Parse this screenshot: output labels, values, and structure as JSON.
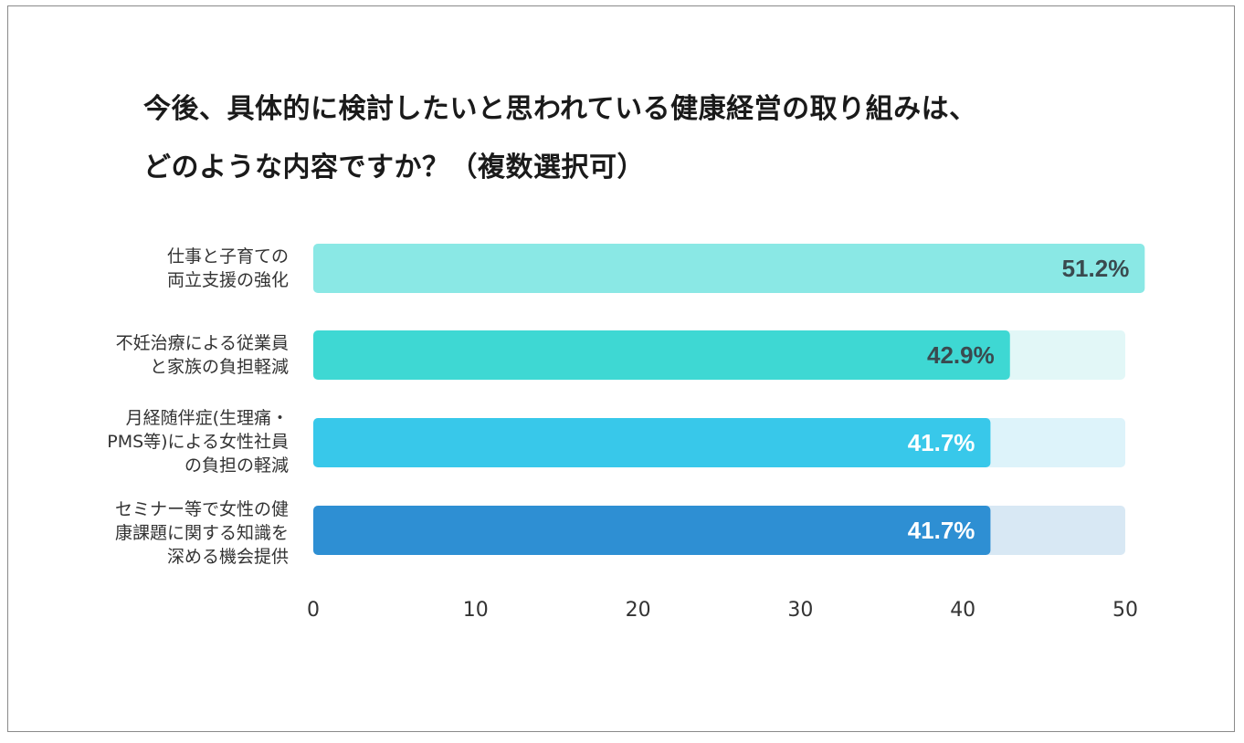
{
  "chart_data": {
    "type": "bar",
    "orientation": "horizontal",
    "title_lines": [
      "今後、具体的に検討したいと思われている健康経営の取り組みは、",
      "どのような内容ですか？（複数選択可）"
    ],
    "categories": [
      [
        "仕事と子育ての",
        "両立支援の強化"
      ],
      [
        "不妊治療による従業員",
        "と家族の負担軽減"
      ],
      [
        "月経随伴症(生理痛・",
        "PMS等)による女性社員",
        "の負担の軽減"
      ],
      [
        "セミナー等で女性の健",
        "康課題に関する知識を",
        "深める機会提供"
      ]
    ],
    "values": [
      51.2,
      42.9,
      41.7,
      41.7
    ],
    "value_labels": [
      "51.2%",
      "42.9%",
      "41.7%",
      "41.7%"
    ],
    "xlim": [
      0,
      50
    ],
    "ticks": [
      "0",
      "10",
      "20",
      "30",
      "40",
      "50"
    ],
    "colors": [
      "#8ae8e5",
      "#3ed8d3",
      "#38c8ea",
      "#2e8fd3"
    ],
    "track_colors": [
      "#e3f8f8",
      "#e2f7f7",
      "#ddf3fa",
      "#d8e8f4"
    ],
    "label_colors": [
      "#3a4a4f",
      "#3a4a4f",
      "#ffffff",
      "#ffffff"
    ]
  }
}
